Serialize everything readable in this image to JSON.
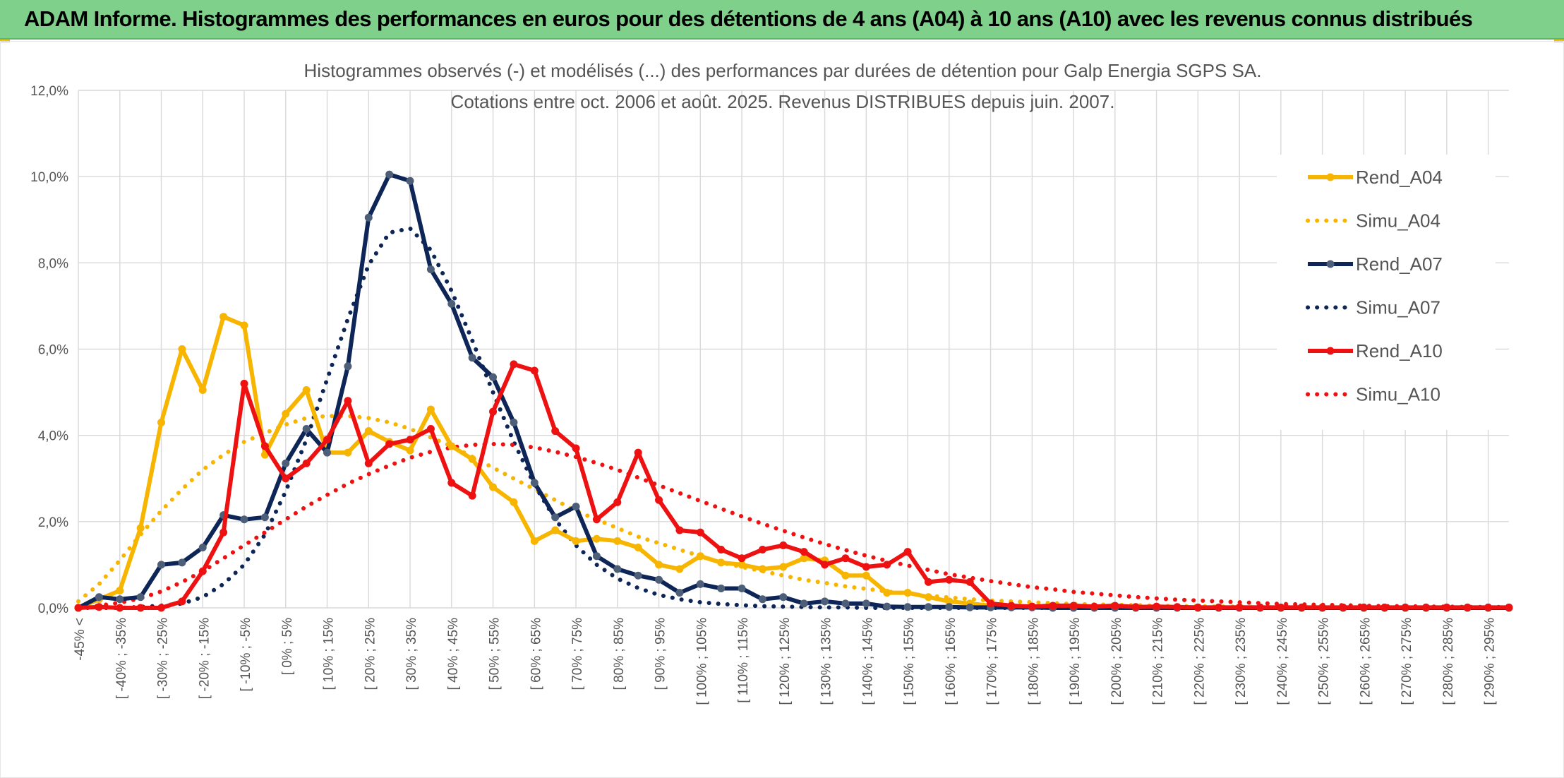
{
  "banner": {
    "title": "ADAM Informe. Histogrammes des performances en euros pour des détentions de 4 ans (A04) à 10 ans (A10) avec les revenus connus distribués"
  },
  "colors": {
    "banner_bg": "#7fd08a",
    "A04": "#f7b500",
    "A07": "#0d2557",
    "A10": "#ee1111",
    "grid": "#d9d9d9",
    "marker_A07": "#4d5e78"
  },
  "chart_data": {
    "type": "line",
    "title_lines": [
      "Histogrammes observés (-) et modélisés (...) des performances par durées de détention pour Galp Energia SGPS SA.",
      "Cotations entre oct. 2006 et août. 2025. Revenus DISTRIBUES depuis juin. 2007."
    ],
    "xlabel": "",
    "ylabel": "",
    "ylim": [
      0,
      12
    ],
    "y_ticks": [
      "0,0%",
      "2,0%",
      "4,0%",
      "6,0%",
      "8,0%",
      "10,0%",
      "12,0%"
    ],
    "grid": true,
    "legend_position": "right",
    "x_labels": [
      "-45% <",
      "[ -40% ; -35%",
      "[ -30% ; -25%",
      "[ -20% ; -15%",
      "[ -10% ; -5%",
      "[ 0% ; 5%",
      "[ 10% ; 15%",
      "[ 20% ; 25%",
      "[ 30% ; 35%",
      "[ 40% ; 45%",
      "[ 50% ; 55%",
      "[ 60% ; 65%",
      "[ 70% ; 75%",
      "[ 80% ; 85%",
      "[ 90% ; 95%",
      "[ 100% ; 105%",
      "[ 110% ; 115%",
      "[ 120% ; 125%",
      "[ 130% ; 135%",
      "[ 140% ; 145%",
      "[ 150% ; 155%",
      "[ 160% ; 165%",
      "[ 170% ; 175%",
      "[ 180% ; 185%",
      "[ 190% ; 195%",
      "[ 200% ; 205%",
      "[ 210% ; 215%",
      "[ 220% ; 225%",
      "[ 230% ; 235%",
      "[ 240% ; 245%",
      "[ 250% ; 255%",
      "[ 260% ; 265%",
      "[ 270% ; 275%",
      "[ 280% ; 285%",
      "[ 290% ; 295%"
    ],
    "series": [
      {
        "name": "Rend_A04",
        "style": "solid",
        "color": "#f7b500",
        "values": [
          0.0,
          0.2,
          0.4,
          1.85,
          4.3,
          6.0,
          5.05,
          6.75,
          6.55,
          3.55,
          4.5,
          5.05,
          3.6,
          3.6,
          4.1,
          3.85,
          3.65,
          4.6,
          3.75,
          3.45,
          2.8,
          2.45,
          1.55,
          1.8,
          1.55,
          1.6,
          1.55,
          1.4,
          1.0,
          0.9,
          1.2,
          1.05,
          1.0,
          0.9,
          0.95,
          1.15,
          1.1,
          0.75,
          0.75,
          0.35,
          0.35,
          0.25,
          0.15,
          0.1,
          0.05,
          0.03,
          0.03,
          0.02,
          0.02,
          0.02,
          0.02,
          0.01,
          0.01,
          0.01,
          0.01,
          0.01,
          0.01,
          0.01,
          0.0,
          0.0,
          0.0,
          0.0,
          0.0,
          0.0,
          0.0,
          0.0,
          0.0,
          0.0,
          0.0,
          0.0
        ]
      },
      {
        "name": "Simu_A04",
        "style": "dotted",
        "color": "#f7b500",
        "values": [
          0.15,
          0.55,
          1.1,
          1.7,
          2.25,
          2.75,
          3.2,
          3.55,
          3.85,
          4.05,
          4.25,
          4.4,
          4.45,
          4.45,
          4.4,
          4.3,
          4.15,
          3.95,
          3.75,
          3.5,
          3.25,
          3.0,
          2.75,
          2.5,
          2.25,
          2.05,
          1.85,
          1.65,
          1.5,
          1.35,
          1.2,
          1.05,
          0.95,
          0.85,
          0.75,
          0.65,
          0.58,
          0.5,
          0.44,
          0.38,
          0.33,
          0.28,
          0.24,
          0.2,
          0.17,
          0.15,
          0.13,
          0.11,
          0.09,
          0.08,
          0.07,
          0.06,
          0.05,
          0.04,
          0.04,
          0.03,
          0.03,
          0.02,
          0.02,
          0.02,
          0.01,
          0.01,
          0.01,
          0.01,
          0.01,
          0.01,
          0.0,
          0.0,
          0.0,
          0.0
        ]
      },
      {
        "name": "Rend_A07",
        "style": "solid",
        "color": "#0d2557",
        "values": [
          0.0,
          0.25,
          0.2,
          0.25,
          1.0,
          1.05,
          1.4,
          2.15,
          2.05,
          2.1,
          3.35,
          4.15,
          3.6,
          5.6,
          9.05,
          10.05,
          9.9,
          7.85,
          7.05,
          5.8,
          5.35,
          4.3,
          2.9,
          2.1,
          2.35,
          1.2,
          0.9,
          0.75,
          0.65,
          0.35,
          0.55,
          0.45,
          0.45,
          0.2,
          0.25,
          0.1,
          0.15,
          0.1,
          0.1,
          0.03,
          0.02,
          0.02,
          0.02,
          0.01,
          0.01,
          0.01,
          0.01,
          0.0,
          0.0,
          0.0,
          0.0,
          0.0,
          0.0,
          0.0,
          0.0,
          0.0,
          0.0,
          0.0,
          0.0,
          0.0,
          0.0,
          0.0,
          0.0,
          0.0,
          0.0,
          0.0,
          0.0,
          0.0,
          0.0,
          0.0
        ]
      },
      {
        "name": "Simu_A07",
        "style": "dotted",
        "color": "#0d2557",
        "values": [
          0.0,
          0.0,
          0.0,
          0.02,
          0.05,
          0.1,
          0.25,
          0.55,
          1.0,
          1.7,
          2.7,
          3.9,
          5.3,
          6.7,
          7.95,
          8.7,
          8.8,
          8.3,
          7.35,
          6.2,
          5.0,
          3.85,
          2.85,
          2.05,
          1.45,
          1.0,
          0.68,
          0.46,
          0.3,
          0.2,
          0.13,
          0.09,
          0.06,
          0.04,
          0.03,
          0.02,
          0.01,
          0.01,
          0.0,
          0.0,
          0.0,
          0.0,
          0.0,
          0.0,
          0.0,
          0.0,
          0.0,
          0.0,
          0.0,
          0.0,
          0.0,
          0.0,
          0.0,
          0.0,
          0.0,
          0.0,
          0.0,
          0.0,
          0.0,
          0.0,
          0.0,
          0.0,
          0.0,
          0.0,
          0.0,
          0.0,
          0.0,
          0.0,
          0.0,
          0.0
        ]
      },
      {
        "name": "Rend_A10",
        "style": "solid",
        "color": "#ee1111",
        "values": [
          0.0,
          0.02,
          0.0,
          0.0,
          0.0,
          0.15,
          0.85,
          1.75,
          5.2,
          3.75,
          3.0,
          3.35,
          3.9,
          4.8,
          3.35,
          3.8,
          3.9,
          4.15,
          2.9,
          2.6,
          4.55,
          5.65,
          5.5,
          4.1,
          3.7,
          2.05,
          2.45,
          3.6,
          2.5,
          1.8,
          1.75,
          1.35,
          1.15,
          1.35,
          1.45,
          1.3,
          1.0,
          1.15,
          0.95,
          1.0,
          1.3,
          0.6,
          0.65,
          0.6,
          0.1,
          0.05,
          0.03,
          0.05,
          0.05,
          0.03,
          0.05,
          0.02,
          0.03,
          0.02,
          0.01,
          0.01,
          0.01,
          0.01,
          0.01,
          0.01,
          0.01,
          0.01,
          0.01,
          0.01,
          0.01,
          0.01,
          0.01,
          0.01,
          0.01,
          0.01
        ]
      },
      {
        "name": "Simu_A10",
        "style": "dotted",
        "color": "#ee1111",
        "values": [
          0.02,
          0.05,
          0.12,
          0.22,
          0.38,
          0.6,
          0.85,
          1.15,
          1.45,
          1.75,
          2.05,
          2.35,
          2.62,
          2.88,
          3.1,
          3.3,
          3.48,
          3.62,
          3.72,
          3.78,
          3.8,
          3.78,
          3.72,
          3.62,
          3.5,
          3.36,
          3.2,
          3.02,
          2.84,
          2.66,
          2.48,
          2.3,
          2.12,
          1.95,
          1.79,
          1.63,
          1.48,
          1.34,
          1.21,
          1.09,
          0.98,
          0.88,
          0.78,
          0.7,
          0.62,
          0.55,
          0.48,
          0.43,
          0.37,
          0.33,
          0.29,
          0.25,
          0.22,
          0.19,
          0.17,
          0.15,
          0.13,
          0.11,
          0.09,
          0.08,
          0.07,
          0.06,
          0.05,
          0.04,
          0.04,
          0.03,
          0.03,
          0.02,
          0.02,
          0.02
        ]
      }
    ]
  }
}
